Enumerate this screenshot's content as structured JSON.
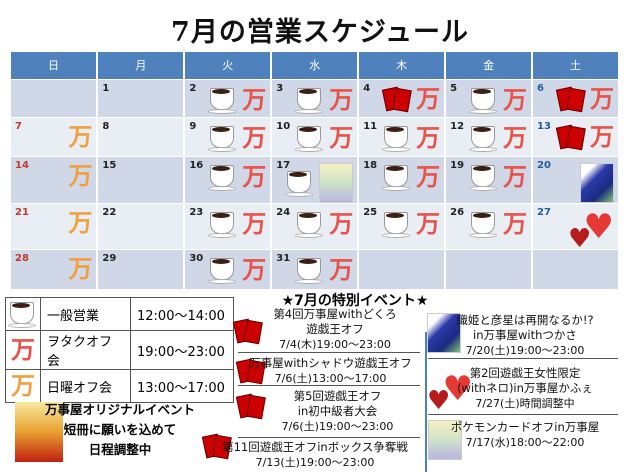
{
  "title": "7月の営業スケジュール",
  "weekdays": [
    "日",
    "月",
    "火",
    "水",
    "木",
    "金",
    "土"
  ],
  "colors": {
    "header": "#4f81bd",
    "sunday": "#c0392b",
    "saturday": "#1f5f99",
    "row_dark": "#d0d8e8",
    "row_light": "#e9edf4"
  },
  "weeks": [
    [
      {
        "day": ""
      },
      {
        "day": "1",
        "icons": []
      },
      {
        "day": "2",
        "icons": [
          "coffee-icon",
          "man-red-icon"
        ]
      },
      {
        "day": "3",
        "icons": [
          "coffee-icon",
          "man-red-icon"
        ]
      },
      {
        "day": "4",
        "icons": [
          "cards-icon",
          "man-red-icon"
        ]
      },
      {
        "day": "5",
        "icons": [
          "coffee-icon",
          "man-red-icon"
        ]
      },
      {
        "day": "6",
        "icons": [
          "cards-icon",
          "man-red-icon"
        ]
      }
    ],
    [
      {
        "day": "7",
        "icons": [
          "man-orange-icon"
        ]
      },
      {
        "day": "8",
        "icons": []
      },
      {
        "day": "9",
        "icons": [
          "coffee-icon",
          "man-red-icon"
        ]
      },
      {
        "day": "10",
        "icons": [
          "coffee-icon",
          "man-red-icon"
        ]
      },
      {
        "day": "11",
        "icons": [
          "coffee-icon",
          "man-red-icon"
        ]
      },
      {
        "day": "12",
        "icons": [
          "coffee-icon",
          "man-red-icon"
        ]
      },
      {
        "day": "13",
        "icons": [
          "cards-icon",
          "man-red-icon"
        ]
      }
    ],
    [
      {
        "day": "14",
        "icons": [
          "man-orange-icon"
        ]
      },
      {
        "day": "15",
        "icons": []
      },
      {
        "day": "16",
        "icons": [
          "coffee-icon",
          "man-red-icon"
        ]
      },
      {
        "day": "17",
        "icons": [
          "coffee-icon",
          "character-image"
        ]
      },
      {
        "day": "18",
        "icons": [
          "coffee-icon",
          "man-red-icon"
        ]
      },
      {
        "day": "19",
        "icons": [
          "coffee-icon",
          "man-red-icon"
        ]
      },
      {
        "day": "20",
        "icons": [
          "tanabata-image"
        ]
      }
    ],
    [
      {
        "day": "21",
        "icons": [
          "man-orange-icon"
        ]
      },
      {
        "day": "22",
        "icons": []
      },
      {
        "day": "23",
        "icons": [
          "coffee-icon",
          "man-red-icon"
        ]
      },
      {
        "day": "24",
        "icons": [
          "coffee-icon",
          "man-red-icon"
        ]
      },
      {
        "day": "25",
        "icons": [
          "coffee-icon",
          "man-red-icon"
        ]
      },
      {
        "day": "26",
        "icons": [
          "coffee-icon",
          "man-red-icon"
        ]
      },
      {
        "day": "27",
        "icons": [
          "hearts-icon"
        ]
      }
    ],
    [
      {
        "day": "28",
        "icons": [
          "man-orange-icon"
        ]
      },
      {
        "day": "29",
        "icons": []
      },
      {
        "day": "30",
        "icons": [
          "coffee-icon",
          "man-red-icon"
        ]
      },
      {
        "day": "31",
        "icons": [
          "coffee-icon",
          "man-red-icon"
        ]
      },
      {
        "day": ""
      },
      {
        "day": ""
      },
      {
        "day": ""
      }
    ]
  ],
  "man_glyph": "万",
  "heart_glyph": "♥",
  "legend": [
    {
      "icon": "coffee-icon",
      "label": "一般営業",
      "time": "12:00〜14:00"
    },
    {
      "icon": "man-red-icon",
      "label": "ヲタクオフ会",
      "time": "19:00〜23:00"
    },
    {
      "icon": "man-orange-icon",
      "label": "日曜オフ会",
      "time": "13:00〜17:00"
    }
  ],
  "special_events": {
    "title": "★7月の特別イベント★",
    "left": [
      {
        "lines": [
          "第4回万事屋withどくろ",
          "遊戯王オフ"
        ],
        "date": "7/4(木)19:00〜23:00"
      },
      {
        "lines": [
          "万事屋withシャドウ遊戯王オフ"
        ],
        "date": "7/6(土)13:00〜17:00"
      },
      {
        "lines": [
          "第5回遊戯王オフ",
          "in初中級者大会"
        ],
        "date": "7/6(土)19:00〜23:00"
      },
      {
        "lines": [
          "第11回遊戯王オフinボックス争奪戦"
        ],
        "date": "7/13(土)19:00〜23:00"
      }
    ],
    "right": [
      {
        "lines": [
          "織姫と彦星は再開なるか!?",
          "in万事屋withつかさ"
        ],
        "date": "7/20(土)19:00〜23:00"
      },
      {
        "lines": [
          "第2回遊戯王女性限定",
          "(withネロ)in万事屋かふぇ"
        ],
        "date": "7/27(土)時間調整中"
      },
      {
        "lines": [
          "ポケモンカードオフin万事屋"
        ],
        "date": "7/17(水)18:00〜22:00"
      }
    ]
  },
  "original_event": {
    "lines": [
      "万事屋オリジナルイベント",
      "短冊に願いを込めて",
      "日程調整中"
    ]
  }
}
